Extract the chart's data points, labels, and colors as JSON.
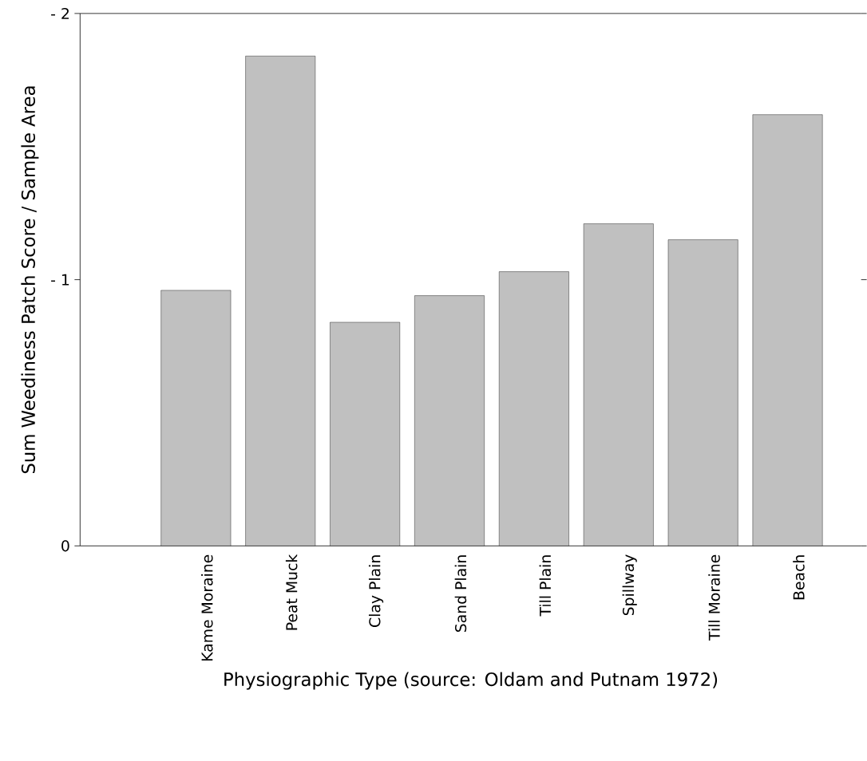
{
  "chart_data": {
    "type": "bar",
    "categories": [
      "Kame Moraine",
      "Peat Muck",
      "Clay Plain",
      "Sand Plain",
      "Till Plain",
      "Spillway",
      "Till Moraine",
      "Beach"
    ],
    "values": [
      -0.96,
      -1.84,
      -0.84,
      -0.94,
      -1.03,
      -1.21,
      -1.15,
      -1.62
    ],
    "color": "#c0c0c0",
    "ylim": [
      0,
      -2
    ],
    "yticks": [
      0,
      {
        "value": -1,
        "label": "- 1"
      },
      {
        "value": -2,
        "label": "- 2"
      }
    ],
    "xlabel": "Physiographic Type (source: Oldam and Putnam 1972)",
    "ylabel": "Sum Weediness Patch Score / Sample Area"
  }
}
